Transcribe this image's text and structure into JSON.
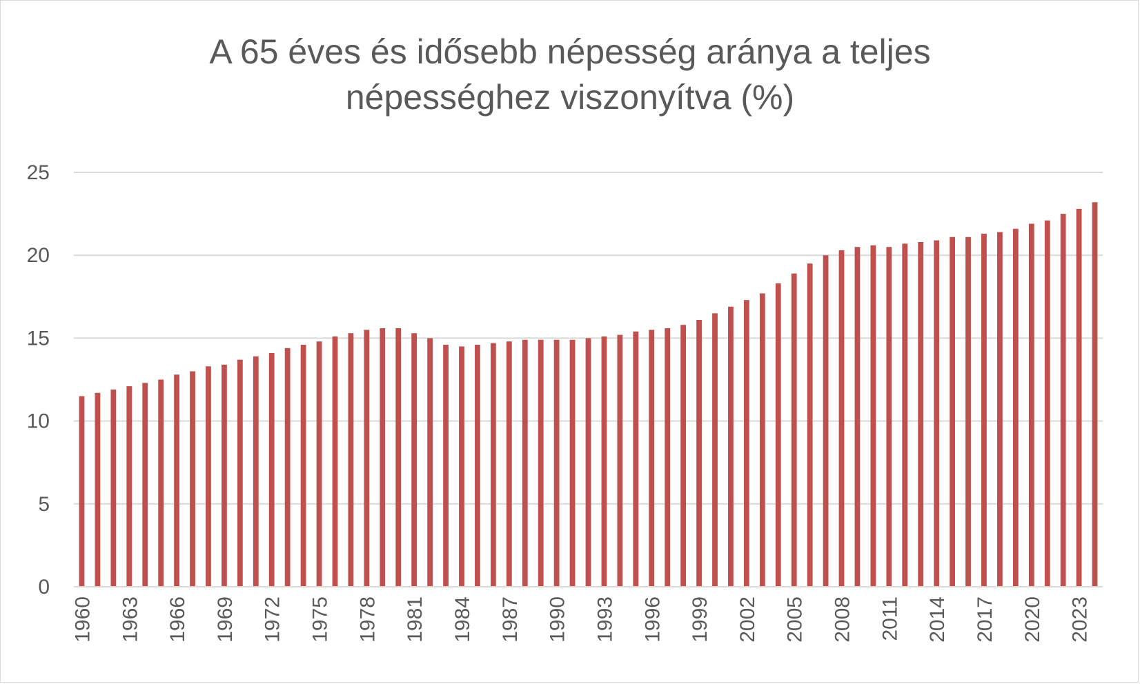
{
  "chart_data": {
    "type": "bar",
    "title_lines": [
      "A 65 éves és idősebb népesség aránya a teljes",
      "népességhez viszonyítva (%)"
    ],
    "xlabel": "",
    "ylabel": "",
    "ylim": [
      0,
      25
    ],
    "yticks": [
      "0",
      "5",
      "10",
      "15",
      "20",
      "25"
    ],
    "grid": true,
    "legend": "none",
    "bar_color": "#c0504d",
    "categories": [
      "1960",
      "1961",
      "1962",
      "1963",
      "1964",
      "1965",
      "1966",
      "1967",
      "1968",
      "1969",
      "1970",
      "1971",
      "1972",
      "1973",
      "1974",
      "1975",
      "1976",
      "1977",
      "1978",
      "1979",
      "1980",
      "1981",
      "1982",
      "1983",
      "1984",
      "1985",
      "1986",
      "1987",
      "1988",
      "1989",
      "1990",
      "1991",
      "1992",
      "1993",
      "1994",
      "1995",
      "1996",
      "1997",
      "1998",
      "1999",
      "2000",
      "2001",
      "2002",
      "2003",
      "2004",
      "2005",
      "2006",
      "2007",
      "2008",
      "2009",
      "2010",
      "2011",
      "2012",
      "2013",
      "2014",
      "2015",
      "2016",
      "2017",
      "2018",
      "2019",
      "2020",
      "2021",
      "2022",
      "2023",
      "2024"
    ],
    "values": [
      11.5,
      11.7,
      11.9,
      12.1,
      12.3,
      12.5,
      12.8,
      13.0,
      13.3,
      13.4,
      13.7,
      13.9,
      14.1,
      14.4,
      14.6,
      14.8,
      15.1,
      15.3,
      15.5,
      15.6,
      15.6,
      15.3,
      15.0,
      14.6,
      14.5,
      14.6,
      14.7,
      14.8,
      14.9,
      14.9,
      14.9,
      14.9,
      15.0,
      15.1,
      15.2,
      15.4,
      15.5,
      15.6,
      15.8,
      16.1,
      16.5,
      16.9,
      17.3,
      17.7,
      18.3,
      18.9,
      19.5,
      20.0,
      20.3,
      20.5,
      20.6,
      20.5,
      20.7,
      20.8,
      20.9,
      21.1,
      21.1,
      21.3,
      21.4,
      21.6,
      21.9,
      22.1,
      22.5,
      22.8,
      23.2
    ],
    "xtick_every": 3
  }
}
